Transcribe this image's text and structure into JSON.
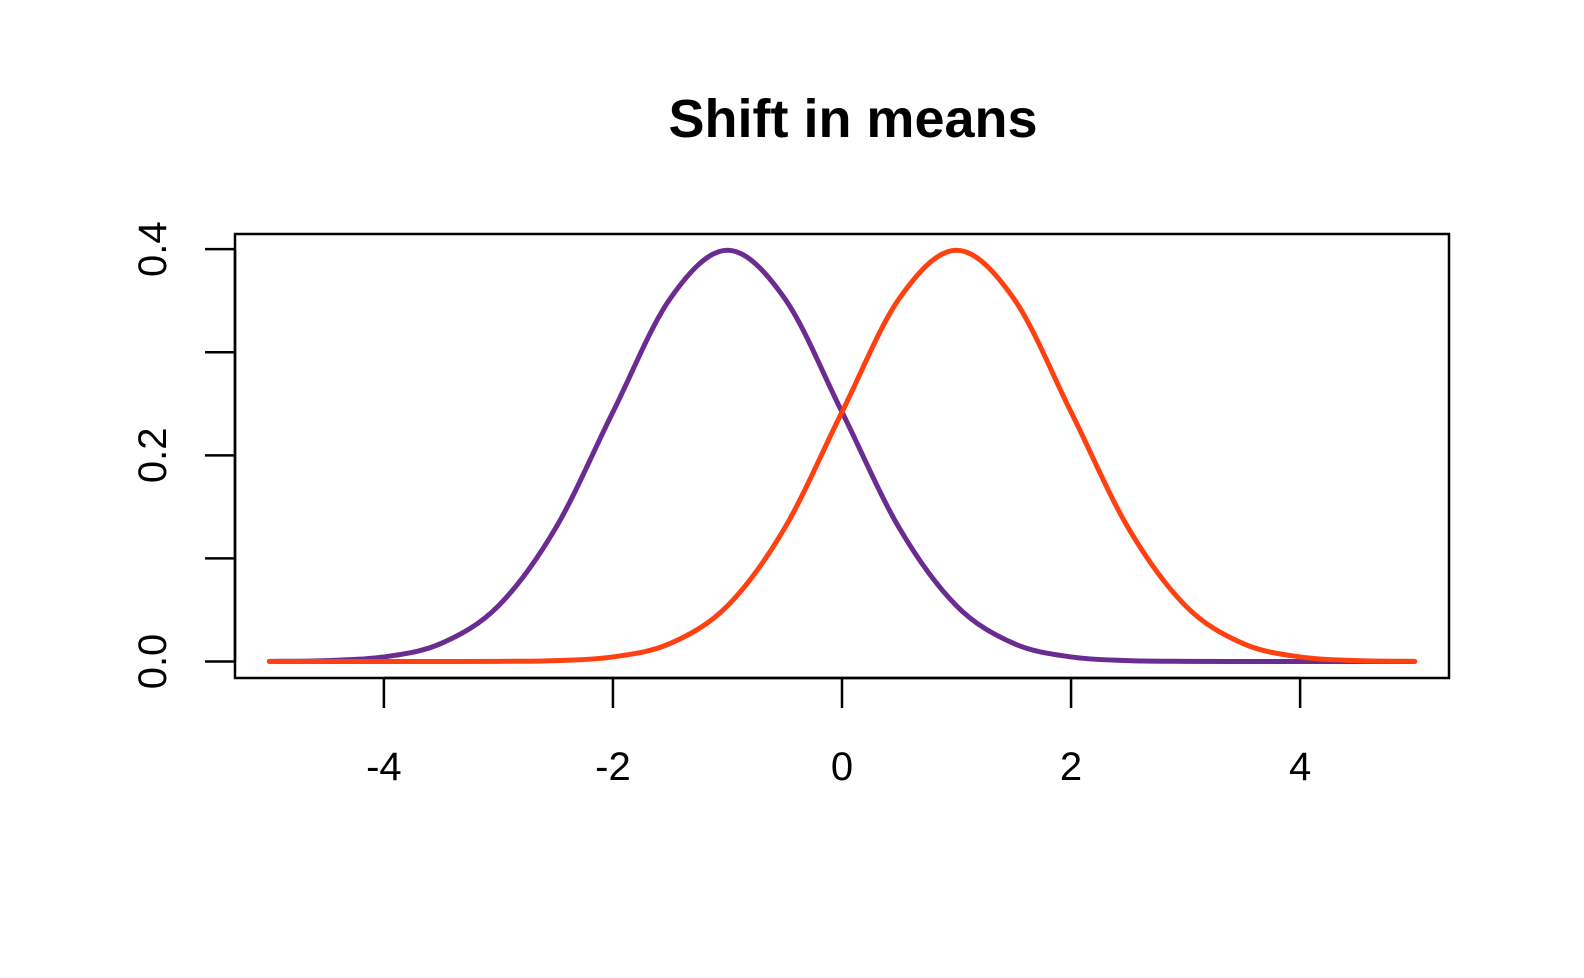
{
  "chart_data": {
    "type": "line",
    "title": "Shift in means",
    "xlabel": "",
    "ylabel": "",
    "xlim": [
      -5.3,
      5.3
    ],
    "ylim": [
      -0.016,
      0.4147
    ],
    "x_ticks": [
      -4,
      -2,
      0,
      2,
      4
    ],
    "x_tick_labels": [
      "-4",
      "-2",
      "0",
      "2",
      "4"
    ],
    "y_ticks": [
      0.0,
      0.1,
      0.2,
      0.3,
      0.4
    ],
    "y_tick_labels": [
      "0.0",
      "",
      "0.2",
      "",
      "0.4"
    ],
    "grid": false,
    "legend": "none",
    "x": [
      -5,
      -4.5,
      -4,
      -3.5,
      -3,
      -2.5,
      -2,
      -1.5,
      -1,
      -0.5,
      0,
      0.5,
      1,
      1.5,
      2,
      2.5,
      3,
      3.5,
      4,
      4.5,
      5
    ],
    "series": [
      {
        "color": "#6a2c91",
        "values": [
          0.00013,
          0.00087,
          0.00443,
          0.0175,
          0.054,
          0.1295,
          0.242,
          0.3521,
          0.3989,
          0.3521,
          0.242,
          0.1295,
          0.054,
          0.0175,
          0.00443,
          0.00087,
          0.00013,
          2e-05,
          0.0,
          0.0,
          0.0
        ]
      },
      {
        "color": "#ff4010",
        "values": [
          0.0,
          0.0,
          0.0,
          2e-05,
          0.00013,
          0.00087,
          0.00443,
          0.0175,
          0.054,
          0.1295,
          0.242,
          0.3521,
          0.3989,
          0.3521,
          0.242,
          0.1295,
          0.054,
          0.0175,
          0.00443,
          0.00087,
          0.00013
        ]
      }
    ]
  }
}
